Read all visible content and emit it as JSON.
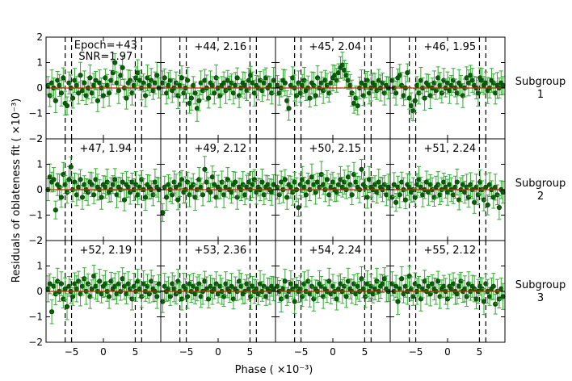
{
  "chart_data": {
    "type": "scatter",
    "grid_layout": "3 rows x 4 columns, shared axes",
    "xlabel": "Phase ( ×10⁻³)",
    "ylabel": "Residuals of oblateness fit  ( ×10⁻³)",
    "xlim": [
      -9,
      9
    ],
    "ylim": [
      -2,
      2
    ],
    "xticks": [
      -5,
      0,
      5
    ],
    "xtick_labels": [
      "−5",
      "0",
      "5"
    ],
    "yticks": [
      -2,
      -1,
      0,
      1,
      2
    ],
    "ytick_labels": [
      "−2",
      "−1",
      "0",
      "1",
      "2"
    ],
    "dashed_vlines": [
      -6,
      -5,
      5,
      6
    ],
    "model_line_y": 0,
    "colors": {
      "points": "#0a5c0a",
      "errorbars": "#33aa33",
      "model_line": "#cc2200",
      "dashed": "#000000"
    },
    "row_labels": [
      "Subgroup\n1",
      "Subgroup\n2",
      "Subgroup\n3"
    ],
    "panels": [
      {
        "epoch": "+43",
        "snr": "1.97",
        "label_line1": "Epoch=+43",
        "label_line2": "SNR=1.97"
      },
      {
        "epoch": "+44",
        "snr": "2.16",
        "label": "+44, 2.16"
      },
      {
        "epoch": "+45",
        "snr": "2.04",
        "label": "+45, 2.04"
      },
      {
        "epoch": "+46",
        "snr": "1.95",
        "label": "+46, 1.95"
      },
      {
        "epoch": "+47",
        "snr": "1.94",
        "label": "+47, 1.94"
      },
      {
        "epoch": "+49",
        "snr": "2.12",
        "label": "+49, 2.12"
      },
      {
        "epoch": "+50",
        "snr": "2.15",
        "label": "+50, 2.15"
      },
      {
        "epoch": "+51",
        "snr": "2.24",
        "label": "+51, 2.24"
      },
      {
        "epoch": "+52",
        "snr": "2.19",
        "label": "+52, 2.19"
      },
      {
        "epoch": "+53",
        "snr": "2.36",
        "label": "+53, 2.36"
      },
      {
        "epoch": "+54",
        "snr": "2.24",
        "label": "+54, 2.24"
      },
      {
        "epoch": "+55",
        "snr": "2.12",
        "label": "+55, 2.12"
      }
    ],
    "series_note": "Each panel shows ~60 phase-folded residual points scattered about 0 (typical |y| < 0.8, errors ~0.4); values below are approximate readings.",
    "x": [
      -8.7,
      -8.4,
      -8.1,
      -7.8,
      -7.5,
      -7.2,
      -6.9,
      -6.6,
      -6.3,
      -6.0,
      -5.7,
      -5.4,
      -5.1,
      -4.8,
      -4.5,
      -4.2,
      -3.9,
      -3.6,
      -3.3,
      -3.0,
      -2.7,
      -2.4,
      -2.1,
      -1.8,
      -1.5,
      -1.2,
      -0.9,
      -0.6,
      -0.3,
      0.0,
      0.3,
      0.6,
      0.9,
      1.2,
      1.5,
      1.8,
      2.1,
      2.4,
      2.7,
      3.0,
      3.3,
      3.6,
      3.9,
      4.2,
      4.5,
      4.8,
      5.1,
      5.4,
      5.7,
      6.0,
      6.3,
      6.6,
      6.9,
      7.2,
      7.5,
      7.8,
      8.1,
      8.4,
      8.7
    ],
    "series": [
      {
        "values": [
          0.1,
          -0.3,
          0.2,
          0.0,
          -0.5,
          0.3,
          0.1,
          -0.2,
          0.4,
          -0.6,
          -0.7,
          0.2,
          0.0,
          -0.4,
          0.3,
          0.1,
          -0.2,
          0.5,
          -0.1,
          0.2,
          -0.3,
          0.0,
          0.4,
          -0.2,
          0.1,
          0.3,
          -0.5,
          0.2,
          0.0,
          -0.3,
          0.4,
          0.1,
          -0.2,
          0.3,
          0.6,
          1.0,
          0.2,
          -0.1,
          0.5,
          0.8,
          0.0,
          -0.4,
          0.2,
          0.3,
          -0.2,
          0.1,
          0.4,
          0.6,
          0.3,
          0.0,
          0.2,
          -0.3,
          0.4,
          0.1,
          0.3,
          -0.1,
          0.2,
          0.5,
          0.0
        ]
      },
      {
        "values": [
          0.2,
          0.4,
          -0.2,
          0.1,
          0.3,
          -0.1,
          0.0,
          0.2,
          -0.3,
          0.1,
          0.4,
          -0.2,
          0.0,
          0.3,
          -0.6,
          -0.4,
          0.1,
          -0.2,
          -0.8,
          -0.5,
          0.2,
          -0.1,
          0.3,
          0.0,
          -0.4,
          0.2,
          0.1,
          -0.2,
          0.4,
          0.0,
          -0.3,
          0.1,
          0.2,
          -0.1,
          0.3,
          0.0,
          0.2,
          -0.2,
          0.1,
          0.4,
          -0.3,
          0.0,
          0.2,
          0.1,
          -0.1,
          0.3,
          0.5,
          0.2,
          -0.2,
          0.1,
          0.0,
          0.3,
          -0.1,
          0.2,
          0.4,
          0.0,
          0.1,
          -0.2,
          0.3
        ]
      },
      {
        "values": [
          0.1,
          -0.2,
          0.0,
          0.3,
          0.2,
          -0.5,
          -0.8,
          0.1,
          0.4,
          0.0,
          -0.3,
          0.2,
          -0.2,
          0.1,
          0.3,
          -0.1,
          0.0,
          -0.4,
          0.2,
          0.1,
          -0.3,
          0.4,
          0.0,
          0.2,
          -0.1,
          0.3,
          0.1,
          -0.2,
          0.2,
          0.4,
          0.5,
          0.3,
          0.6,
          0.8,
          0.9,
          0.7,
          0.5,
          0.3,
          0.1,
          -0.2,
          -0.6,
          -0.4,
          -0.7,
          0.0,
          0.2,
          -0.3,
          0.1,
          0.3,
          -0.2,
          0.0,
          0.2,
          0.1,
          -0.1,
          0.3,
          0.0,
          0.2,
          -0.2,
          0.1,
          0.0
        ]
      },
      {
        "values": [
          0.3,
          0.0,
          -0.2,
          0.4,
          0.5,
          0.1,
          -0.3,
          0.0,
          0.6,
          -0.4,
          -0.7,
          -0.9,
          -0.5,
          0.1,
          -0.2,
          0.3,
          0.0,
          -0.4,
          0.2,
          0.1,
          -0.3,
          0.0,
          0.2,
          -0.1,
          0.4,
          0.1,
          -0.2,
          0.3,
          0.0,
          0.2,
          -0.1,
          0.1,
          0.3,
          0.0,
          -0.2,
          0.2,
          0.1,
          -0.3,
          0.0,
          0.4,
          0.2,
          0.5,
          0.3,
          0.1,
          0.0,
          -0.2,
          0.4,
          0.3,
          0.1,
          0.2,
          -0.1,
          0.0,
          0.3,
          0.2,
          -0.2,
          0.1,
          0.0,
          0.2,
          0.1
        ]
      },
      {
        "values": [
          0.0,
          0.5,
          0.3,
          0.4,
          -0.8,
          0.2,
          0.1,
          -0.3,
          0.6,
          0.2,
          -0.1,
          0.4,
          0.9,
          0.0,
          0.3,
          -0.2,
          0.1,
          0.4,
          -0.3,
          0.2,
          0.0,
          -0.1,
          0.3,
          0.2,
          -0.2,
          0.4,
          0.1,
          0.0,
          -0.3,
          0.2,
          0.1,
          0.3,
          -0.1,
          0.0,
          0.2,
          0.4,
          -0.2,
          0.1,
          0.0,
          0.3,
          -0.4,
          0.2,
          0.1,
          -0.1,
          0.3,
          0.0,
          0.2,
          -0.2,
          0.1,
          0.4,
          0.0,
          -0.3,
          0.2,
          0.1,
          0.0,
          -0.2,
          0.3,
          0.1,
          0.0
        ]
      },
      {
        "values": [
          -0.9,
          0.1,
          -0.3,
          0.2,
          0.0,
          -0.2,
          0.3,
          0.1,
          -0.4,
          0.2,
          0.4,
          -0.1,
          0.0,
          0.3,
          -0.2,
          0.1,
          0.2,
          -0.3,
          0.0,
          0.4,
          0.1,
          -0.2,
          0.8,
          0.3,
          0.0,
          -0.1,
          0.5,
          0.2,
          -0.3,
          0.1,
          0.0,
          0.3,
          -0.2,
          0.1,
          0.4,
          0.0,
          -0.1,
          0.2,
          0.3,
          -0.3,
          0.1,
          0.0,
          0.2,
          -0.2,
          0.1,
          0.3,
          0.0,
          0.2,
          0.4,
          -0.1,
          0.1,
          0.0,
          0.3,
          -0.2,
          0.1,
          0.2,
          0.0,
          -0.1,
          0.2
        ]
      },
      {
        "values": [
          0.1,
          -0.2,
          0.3,
          0.0,
          0.4,
          -0.3,
          0.2,
          0.1,
          -0.1,
          0.3,
          0.0,
          -0.7,
          0.2,
          0.4,
          0.1,
          -0.2,
          0.3,
          0.0,
          0.5,
          0.2,
          -0.1,
          0.3,
          0.1,
          0.6,
          0.2,
          0.0,
          0.4,
          -0.2,
          0.1,
          0.3,
          0.0,
          -0.1,
          0.2,
          0.4,
          0.1,
          0.3,
          0.0,
          0.5,
          0.2,
          -0.2,
          0.6,
          0.3,
          0.1,
          0.0,
          0.8,
          0.2,
          0.1,
          -0.3,
          0.4,
          0.1,
          0.0,
          0.2,
          -0.1,
          0.3,
          0.1,
          0.0,
          0.2,
          -0.2,
          0.1
        ]
      },
      {
        "values": [
          -0.3,
          0.2,
          -0.5,
          0.1,
          -0.2,
          0.3,
          0.0,
          -0.4,
          0.2,
          0.1,
          -0.1,
          0.0,
          -0.3,
          0.2,
          0.4,
          0.1,
          -0.2,
          0.0,
          0.3,
          -0.1,
          0.2,
          0.0,
          -0.3,
          0.1,
          0.2,
          -0.2,
          0.0,
          0.3,
          0.1,
          -0.1,
          0.2,
          0.0,
          -0.2,
          0.1,
          0.3,
          -0.4,
          0.0,
          0.2,
          -0.1,
          0.1,
          -0.3,
          0.2,
          0.0,
          -0.5,
          0.1,
          -0.2,
          0.3,
          0.0,
          -0.4,
          0.1,
          -0.6,
          0.2,
          0.0,
          -0.3,
          0.1,
          -0.2,
          -0.7,
          0.0,
          -0.1
        ]
      },
      {
        "values": [
          0.1,
          0.3,
          -0.8,
          0.2,
          -0.1,
          0.4,
          0.0,
          0.3,
          -0.3,
          0.1,
          -0.6,
          0.2,
          0.0,
          -0.2,
          0.3,
          0.1,
          0.4,
          -0.1,
          0.2,
          0.5,
          0.0,
          0.3,
          -0.2,
          0.1,
          0.6,
          0.2,
          0.0,
          0.4,
          -0.1,
          0.2,
          0.3,
          0.0,
          -0.2,
          0.4,
          0.1,
          0.2,
          -0.1,
          0.3,
          0.0,
          0.5,
          0.2,
          -0.1,
          0.3,
          0.1,
          -0.3,
          0.2,
          0.0,
          0.4,
          0.1,
          -0.2,
          0.3,
          0.0,
          0.2,
          -0.1,
          0.4,
          0.1,
          0.0,
          -0.2,
          0.3
        ]
      },
      {
        "values": [
          -0.4,
          0.2,
          0.0,
          0.1,
          -0.2,
          0.3,
          0.1,
          -0.1,
          0.4,
          0.0,
          -0.3,
          0.2,
          0.1,
          -0.2,
          0.3,
          0.0,
          0.2,
          -0.1,
          0.1,
          0.3,
          -0.2,
          0.0,
          0.4,
          0.1,
          -0.3,
          0.2,
          0.0,
          0.1,
          0.3,
          -0.1,
          0.2,
          0.0,
          -0.2,
          0.3,
          0.1,
          0.0,
          0.2,
          -0.3,
          0.1,
          0.0,
          0.4,
          0.2,
          -0.1,
          0.0,
          0.3,
          0.1,
          -0.2,
          0.2,
          0.0,
          0.1,
          -0.1,
          0.3,
          0.0,
          0.2,
          -0.2,
          0.1,
          0.0,
          0.2,
          0.1
        ]
      },
      {
        "values": [
          0.2,
          0.0,
          -0.3,
          0.1,
          0.4,
          -0.2,
          0.0,
          0.3,
          0.1,
          -0.4,
          0.2,
          0.0,
          0.1,
          -0.2,
          0.3,
          0.0,
          0.4,
          -0.1,
          0.2,
          -0.3,
          0.1,
          0.0,
          0.3,
          0.2,
          -0.2,
          0.1,
          0.0,
          0.4,
          -0.1,
          0.2,
          0.0,
          -0.3,
          0.1,
          0.3,
          0.0,
          0.2,
          -0.2,
          0.4,
          0.1,
          0.0,
          0.3,
          -0.1,
          0.2,
          0.0,
          0.5,
          0.1,
          -0.2,
          0.3,
          0.0,
          0.2,
          -0.1,
          0.1,
          0.4,
          0.0,
          0.2,
          0.3,
          0.5,
          0.1,
          0.0
        ]
      },
      {
        "values": [
          0.3,
          0.0,
          0.2,
          -0.4,
          0.1,
          0.5,
          -0.1,
          0.2,
          0.0,
          0.6,
          0.1,
          -0.2,
          0.3,
          0.0,
          0.2,
          -0.3,
          0.1,
          0.4,
          0.0,
          0.2,
          -0.1,
          0.3,
          0.1,
          0.0,
          0.4,
          -0.2,
          0.1,
          0.2,
          0.0,
          -0.3,
          0.2,
          0.1,
          0.3,
          0.0,
          -0.1,
          0.2,
          0.4,
          0.0,
          0.1,
          -0.2,
          0.3,
          0.0,
          0.2,
          0.1,
          -0.3,
          0.0,
          0.2,
          0.1,
          -0.4,
          0.3,
          0.0,
          -0.2,
          0.1,
          0.2,
          -0.5,
          0.0,
          -0.3,
          0.1,
          -0.2
        ]
      }
    ]
  }
}
